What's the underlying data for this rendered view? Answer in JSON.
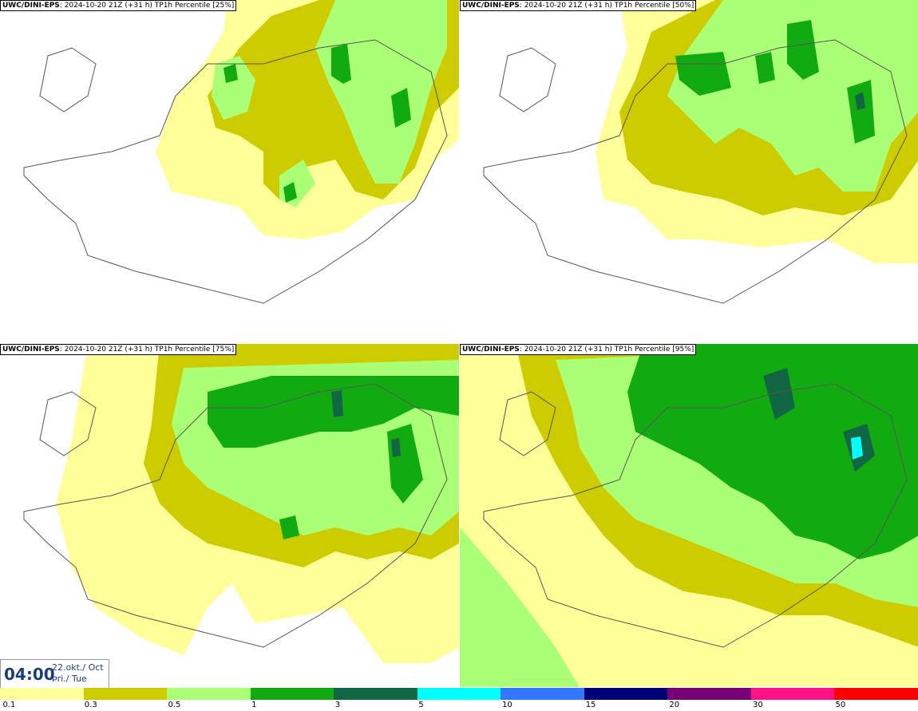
{
  "panels": [
    {
      "model": "UWC/DINI-EPS",
      "info": ": 2024-10-20 21Z (+31 h) TP1h Percentile [25%]",
      "level": 1
    },
    {
      "model": "UWC/DINI-EPS",
      "info": ": 2024-10-20 21Z (+31 h) TP1h Percentile [50%]",
      "level": 2
    },
    {
      "model": "UWC/DINI-EPS",
      "info": ": 2024-10-20 21Z (+31 h) TP1h Percentile [75%]",
      "level": 3
    },
    {
      "model": "UWC/DINI-EPS",
      "info": ": 2024-10-20 21Z (+31 h) TP1h Percentile [95%]",
      "level": 4
    }
  ],
  "time": {
    "hour": "04:00",
    "date_line1": "22.okt./ Oct",
    "date_line2": "Þri./ Tue"
  },
  "legend": {
    "colors": [
      "#ffff99",
      "#cccc00",
      "#aaff77",
      "#11aa11",
      "#116644",
      "#00ffff",
      "#3377ff",
      "#000077",
      "#770077",
      "#ff1188",
      "#ff0000"
    ],
    "labels": [
      "0.1",
      "0.3",
      "0.5",
      "1",
      "3",
      "5",
      "10",
      "15",
      "20",
      "30",
      "50"
    ],
    "label_pos": [
      0.3,
      9.2,
      18.3,
      27.4,
      36.5,
      45.6,
      54.7,
      63.8,
      72.9,
      82.0,
      91.0
    ]
  },
  "precip_colors": {
    "c1": "#ffff99",
    "c2": "#cccc00",
    "c3": "#aaff77",
    "c4": "#11aa11",
    "c5": "#116644",
    "c6": "#00ffff"
  }
}
